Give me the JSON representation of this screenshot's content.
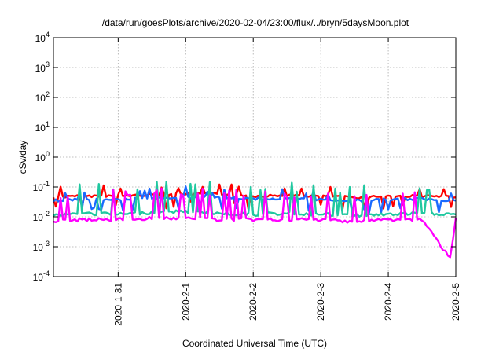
{
  "chart_data": {
    "type": "line",
    "title": "/data/run/goesPlots/archive/2020-02-04/23:00/flux/../bryn/5daysMoon.plot",
    "xlabel": "Coordinated Universal Time (UTC)",
    "ylabel": "cSv/day",
    "y_scale": "log",
    "ylim": [
      0.0001,
      10000
    ],
    "xlim": [
      "2020-01-30T01:00",
      "2020-02-05T00:00"
    ],
    "grid": true,
    "x_ticks": [
      "2020-1-31",
      "2020-2-1",
      "2020-2-2",
      "2020-2-3",
      "2020-2-4",
      "2020-2-5"
    ],
    "y_ticks": [
      {
        "base": "10",
        "exp": "-4"
      },
      {
        "base": "10",
        "exp": "-3"
      },
      {
        "base": "10",
        "exp": "-2"
      },
      {
        "base": "10",
        "exp": "-1"
      },
      {
        "base": "10",
        "exp": "0"
      },
      {
        "base": "10",
        "exp": "1"
      },
      {
        "base": "10",
        "exp": "2"
      },
      {
        "base": "10",
        "exp": "3"
      },
      {
        "base": "10",
        "exp": "4"
      }
    ],
    "series": [
      {
        "color": "#ff0000",
        "x": [
          "2020-01-30T01:00",
          "2020-01-30T12:00",
          "2020-01-31T00:00",
          "2020-01-31T12:00",
          "2020-02-01T00:00",
          "2020-02-01T12:00",
          "2020-02-02T00:00",
          "2020-02-02T12:00",
          "2020-02-03T00:00",
          "2020-02-03T12:00",
          "2020-02-04T00:00",
          "2020-02-04T12:00",
          "2020-02-05T00:00"
        ],
        "values": [
          0.045,
          0.05,
          0.05,
          0.055,
          0.06,
          0.058,
          0.05,
          0.052,
          0.05,
          0.045,
          0.05,
          0.05,
          0.045
        ]
      },
      {
        "color": "#1a6aff",
        "x": [
          "2020-01-30T01:00",
          "2020-01-30T12:00",
          "2020-01-31T00:00",
          "2020-01-31T12:00",
          "2020-02-01T00:00",
          "2020-02-01T12:00",
          "2020-02-02T00:00",
          "2020-02-02T12:00",
          "2020-02-03T00:00",
          "2020-02-03T12:00",
          "2020-02-04T00:00",
          "2020-02-04T12:00",
          "2020-02-05T00:00"
        ],
        "values": [
          0.035,
          0.04,
          0.038,
          0.042,
          0.045,
          0.044,
          0.04,
          0.04,
          0.038,
          0.035,
          0.038,
          0.04,
          0.035
        ]
      },
      {
        "color": "#20c8a0",
        "x": [
          "2020-01-30T01:00",
          "2020-01-30T12:00",
          "2020-01-31T00:00",
          "2020-01-31T12:00",
          "2020-02-01T00:00",
          "2020-02-01T12:00",
          "2020-02-02T00:00",
          "2020-02-02T12:00",
          "2020-02-03T00:00",
          "2020-02-03T12:00",
          "2020-02-04T00:00",
          "2020-02-04T12:00",
          "2020-02-05T00:00"
        ],
        "values": [
          0.011,
          0.013,
          0.012,
          0.014,
          0.015,
          0.013,
          0.012,
          0.013,
          0.012,
          0.011,
          0.012,
          0.013,
          0.012
        ]
      },
      {
        "color": "#ff00ff",
        "x": [
          "2020-01-30T01:00",
          "2020-01-30T12:00",
          "2020-01-31T00:00",
          "2020-01-31T12:00",
          "2020-02-01T00:00",
          "2020-02-01T12:00",
          "2020-02-02T00:00",
          "2020-02-02T12:00",
          "2020-02-03T00:00",
          "2020-02-03T12:00",
          "2020-02-04T00:00",
          "2020-02-04T12:00",
          "2020-02-04T22:00",
          "2020-02-05T00:00"
        ],
        "values": [
          0.007,
          0.008,
          0.008,
          0.009,
          0.009,
          0.008,
          0.008,
          0.008,
          0.008,
          0.007,
          0.008,
          0.008,
          0.0004,
          0.009
        ]
      }
    ]
  }
}
